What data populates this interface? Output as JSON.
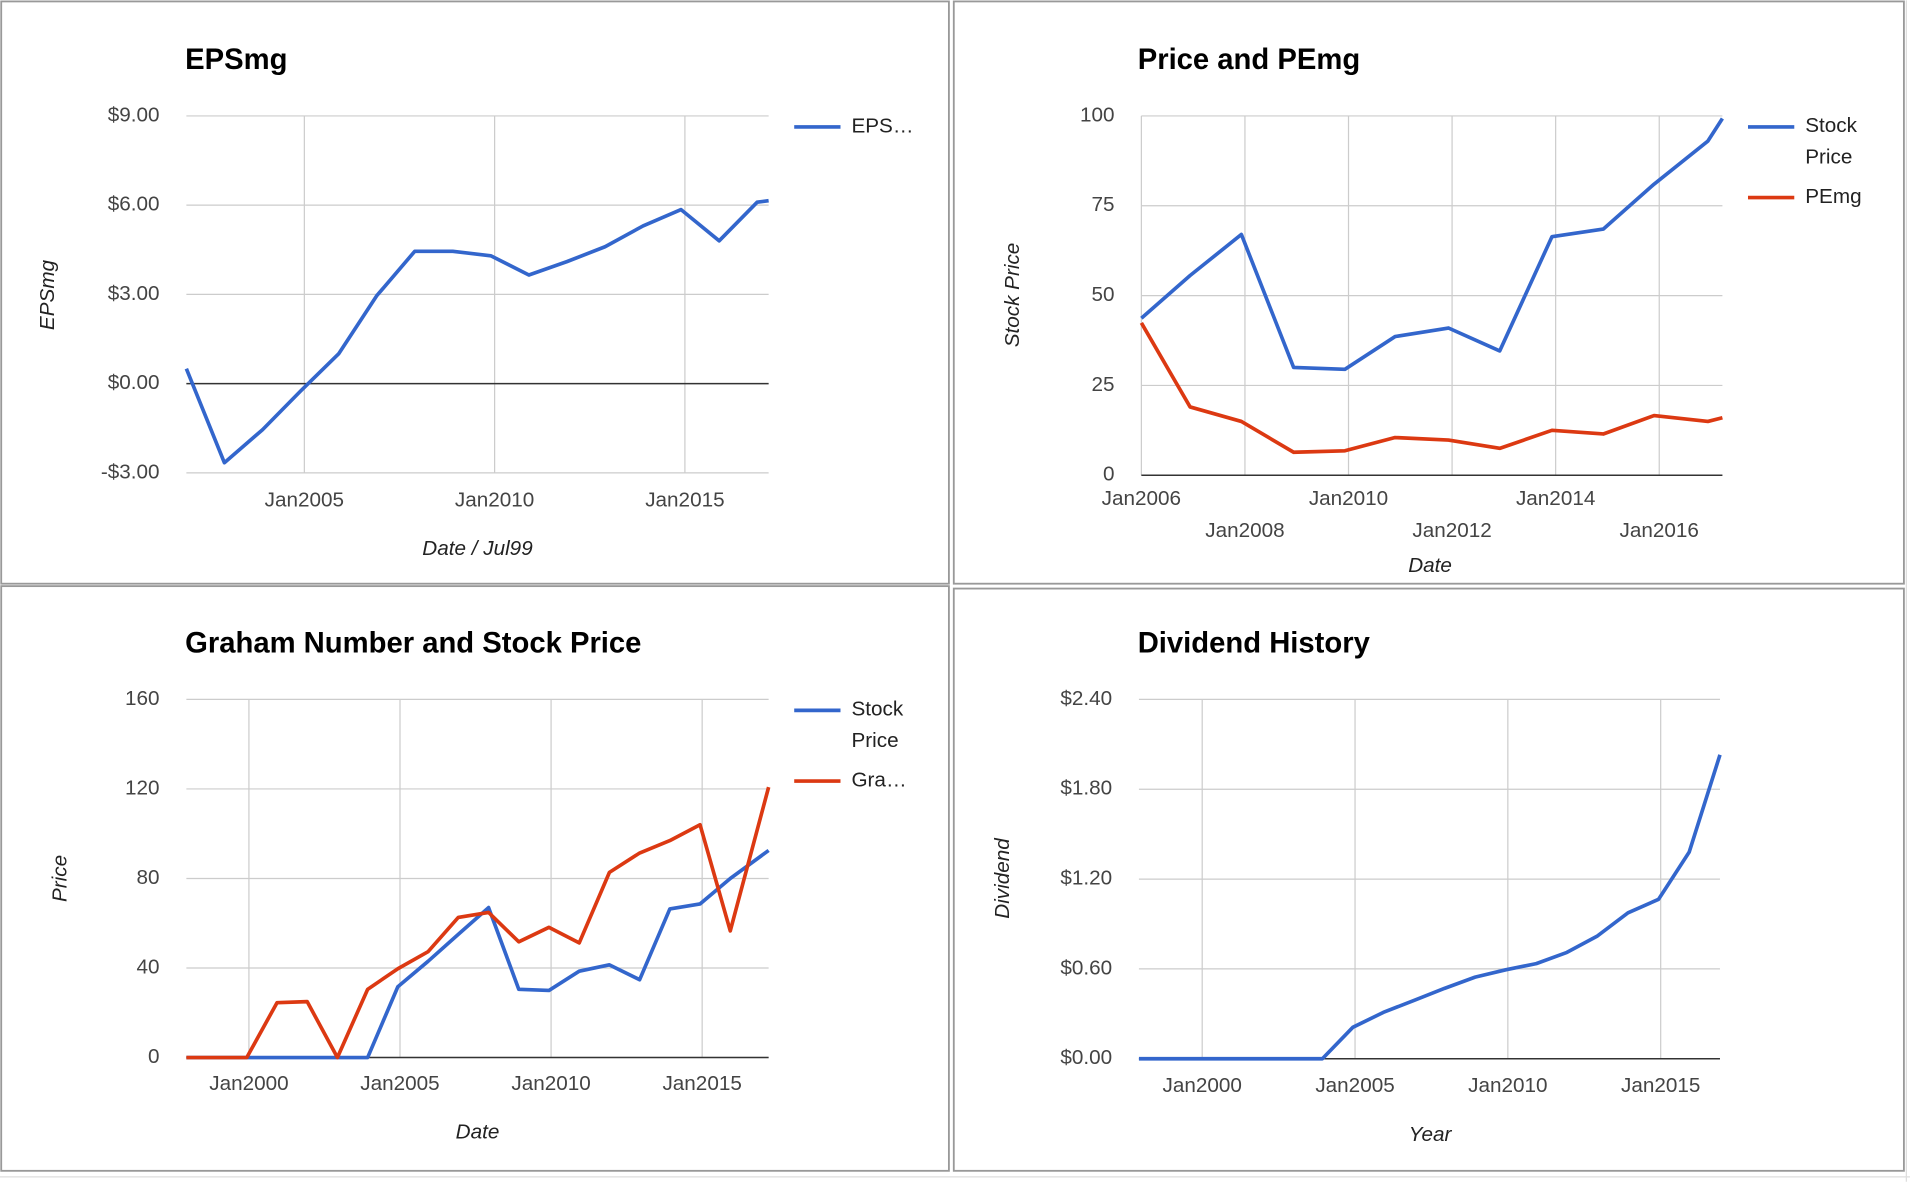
{
  "chart_data": [
    {
      "type": "line",
      "title": "EPSmg",
      "x_label": "Date / Jul99",
      "y_label": "EPSmg",
      "x": [
        2001.9,
        2002.9,
        2003.9,
        2004.9,
        2005.9,
        2006.9,
        2007.9,
        2008.9,
        2009.9,
        2010.9,
        2011.9,
        2012.9,
        2013.9,
        2014.9,
        2015.9,
        2016.9,
        2017.2
      ],
      "series": [
        {
          "name": "EPS…",
          "color": "#3366cc",
          "values": [
            0.5,
            -2.66,
            -1.55,
            -0.25,
            1.0,
            2.95,
            4.45,
            4.45,
            4.3,
            3.65,
            4.1,
            4.6,
            5.3,
            5.85,
            4.8,
            6.1,
            6.15
          ]
        }
      ],
      "xlim": [
        2001.9,
        2017.2
      ],
      "xticks": [
        {
          "value": 2005,
          "label": "Jan2005"
        },
        {
          "value": 2010,
          "label": "Jan2010"
        },
        {
          "value": 2015,
          "label": "Jan2015"
        }
      ],
      "ylim": [
        -3,
        9
      ],
      "yticks": [
        {
          "value": -3,
          "label": "-$3.00"
        },
        {
          "value": 0,
          "label": "$0.00"
        },
        {
          "value": 3,
          "label": "$3.00"
        },
        {
          "value": 6,
          "label": "$6.00"
        },
        {
          "value": 9,
          "label": "$9.00"
        }
      ],
      "grid": true,
      "legend": "right"
    },
    {
      "type": "line",
      "title": "Price and PEmg",
      "x_label": "Date",
      "y_label": "Stock Price",
      "x": [
        2006.0,
        2006.94,
        2007.93,
        2008.94,
        2009.93,
        2010.9,
        2011.93,
        2012.92,
        2013.93,
        2014.92,
        2015.9,
        2016.94,
        2017.22
      ],
      "series": [
        {
          "name": "Stock Price",
          "color": "#3366cc",
          "values": [
            43.7,
            55.6,
            67,
            30,
            29.5,
            38.6,
            41,
            34.6,
            66.4,
            68.5,
            81,
            93,
            99.3
          ]
        },
        {
          "name": "PEmg",
          "color": "#dc3912",
          "values": [
            42.4,
            19,
            15,
            6.4,
            6.8,
            10.5,
            9.8,
            7.5,
            12.5,
            11.5,
            16.6,
            15,
            16
          ]
        }
      ],
      "xlim": [
        2006.0,
        2017.22
      ],
      "xticks": [
        {
          "value": 2006,
          "label": "Jan2006"
        },
        {
          "value": 2008,
          "label": "Jan2008"
        },
        {
          "value": 2010,
          "label": "Jan2010"
        },
        {
          "value": 2012,
          "label": "Jan2012"
        },
        {
          "value": 2014,
          "label": "Jan2014"
        },
        {
          "value": 2016,
          "label": "Jan2016"
        }
      ],
      "ylim": [
        0,
        100
      ],
      "yticks": [
        0,
        25,
        50,
        75,
        100
      ],
      "grid": true,
      "legend": "right"
    },
    {
      "type": "line",
      "title": "Graham Number and Stock Price",
      "x_label": "Date",
      "y_label": "Price",
      "x": [
        1997.93,
        1998.93,
        1999.93,
        2000.93,
        2001.93,
        2002.93,
        2003.93,
        2004.93,
        2005.93,
        2006.93,
        2007.93,
        2008.93,
        2009.93,
        2010.93,
        2011.93,
        2012.93,
        2013.93,
        2014.93,
        2015.93,
        2017.2
      ],
      "series": [
        {
          "name": "Stock Price",
          "color": "#3366cc",
          "values": [
            0,
            0,
            0,
            0,
            0,
            0,
            0,
            31.6,
            43,
            55,
            67,
            30.5,
            30,
            38.6,
            41.4,
            34.8,
            66.4,
            68.6,
            80,
            92.5
          ]
        },
        {
          "name": "Gra…",
          "color": "#dc3912",
          "values": [
            0,
            0,
            0,
            24.5,
            25,
            0,
            30.5,
            39.7,
            47.3,
            62.6,
            64.8,
            51.7,
            58.2,
            51.2,
            82.7,
            91.4,
            96.9,
            104,
            56.6,
            120.8
          ]
        }
      ],
      "xlim": [
        1997.93,
        2017.2
      ],
      "xticks": [
        {
          "value": 2000,
          "label": "Jan2000"
        },
        {
          "value": 2005,
          "label": "Jan2005"
        },
        {
          "value": 2010,
          "label": "Jan2010"
        },
        {
          "value": 2015,
          "label": "Jan2015"
        }
      ],
      "ylim": [
        0,
        160
      ],
      "yticks": [
        0,
        40,
        80,
        120,
        160
      ],
      "grid": true,
      "legend": "right"
    },
    {
      "type": "line",
      "title": "Dividend History",
      "x_label": "Year",
      "y_label": "Dividend",
      "x": [
        1997.93,
        1998.93,
        1999.93,
        2000.93,
        2001.93,
        2002.93,
        2003.93,
        2004.93,
        2005.93,
        2006.93,
        2007.93,
        2008.93,
        2009.93,
        2010.93,
        2011.93,
        2012.93,
        2013.93,
        2014.93,
        2015.93,
        2016.94
      ],
      "values": [
        0,
        0,
        0,
        0,
        0,
        0,
        0,
        0.21,
        0.31,
        0.39,
        0.47,
        0.545,
        0.594,
        0.635,
        0.71,
        0.82,
        0.975,
        1.065,
        1.38,
        2.03
      ],
      "color": "#3366cc",
      "xlim": [
        1997.93,
        2016.94
      ],
      "xticks": [
        {
          "value": 2000,
          "label": "Jan2000"
        },
        {
          "value": 2005,
          "label": "Jan2005"
        },
        {
          "value": 2010,
          "label": "Jan2010"
        },
        {
          "value": 2015,
          "label": "Jan2015"
        }
      ],
      "ylim": [
        0,
        2.4
      ],
      "yticks": [
        {
          "value": 0,
          "label": "$0.00"
        },
        {
          "value": 0.6,
          "label": "$0.60"
        },
        {
          "value": 1.2,
          "label": "$1.20"
        },
        {
          "value": 1.8,
          "label": "$1.80"
        },
        {
          "value": 2.4,
          "label": "$2.40"
        }
      ],
      "grid": true
    }
  ]
}
